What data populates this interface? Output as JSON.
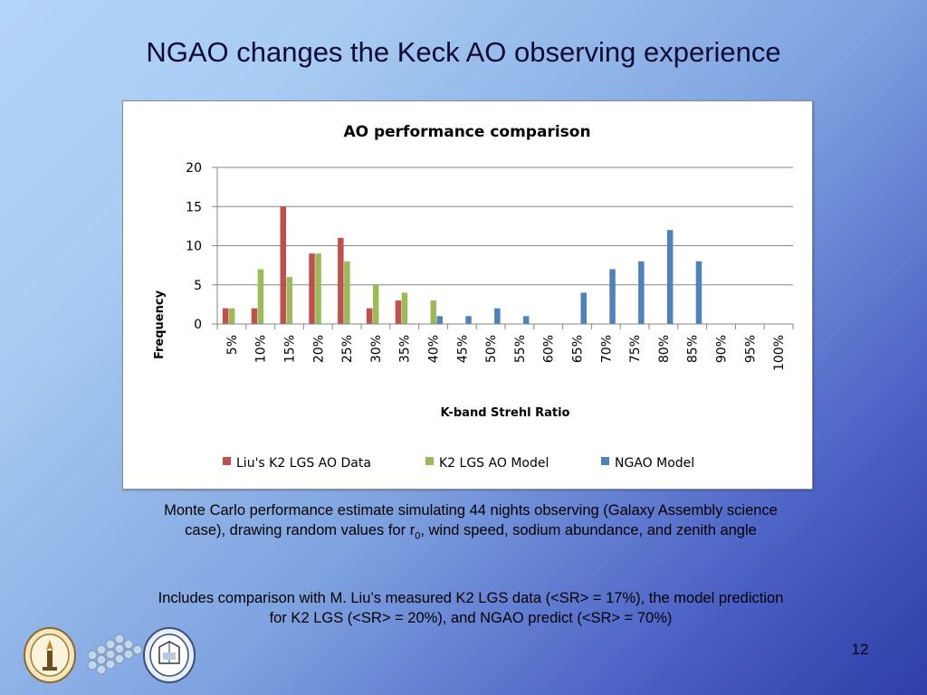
{
  "slide": {
    "title": "NGAO changes the Keck AO observing experience",
    "caption1_part1": "Monte Carlo performance estimate simulating 44 nights observing (Galaxy Assembly science case), drawing random values for r",
    "caption1_subscript": "0",
    "caption1_part2": ", wind speed, sodium abundance, and zenith angle",
    "caption2": "Includes comparison with M. Liu’s measured K2 LGS data (<SR> = 17%), the model prediction for K2 LGS (<SR> = 20%), and NGAO predict (<SR> = 70%)",
    "page_number": "12"
  },
  "chart_data": {
    "type": "bar",
    "title": "AO performance comparison",
    "xlabel": "K-band Strehl Ratio",
    "ylabel": "Frequency",
    "ylim": [
      0,
      20
    ],
    "yticks": [
      0,
      5,
      10,
      15,
      20
    ],
    "grid": true,
    "legend_position": "bottom",
    "categories": [
      "5%",
      "10%",
      "15%",
      "20%",
      "25%",
      "30%",
      "35%",
      "40%",
      "45%",
      "50%",
      "55%",
      "60%",
      "65%",
      "70%",
      "75%",
      "80%",
      "85%",
      "90%",
      "95%",
      "100%"
    ],
    "series": [
      {
        "name": "Liu's K2 LGS AO Data",
        "color": "#c0504d",
        "values": [
          2,
          2,
          15,
          9,
          11,
          2,
          3,
          0,
          0,
          0,
          0,
          0,
          0,
          0,
          0,
          0,
          0,
          0,
          0,
          0
        ]
      },
      {
        "name": "K2 LGS AO Model",
        "color": "#9bbb59",
        "values": [
          2,
          7,
          6,
          9,
          8,
          5,
          4,
          3,
          0,
          0,
          0,
          0,
          0,
          0,
          0,
          0,
          0,
          0,
          0,
          0
        ]
      },
      {
        "name": "NGAO Model",
        "color": "#4f81bd",
        "values": [
          0,
          0,
          0,
          0,
          0,
          0,
          0,
          1,
          1,
          2,
          1,
          0,
          4,
          7,
          8,
          12,
          8,
          0,
          0,
          0
        ]
      }
    ]
  },
  "logos": [
    "caltech-seal-icon",
    "keck-mirror-segments-icon",
    "uc-seal-icon"
  ]
}
